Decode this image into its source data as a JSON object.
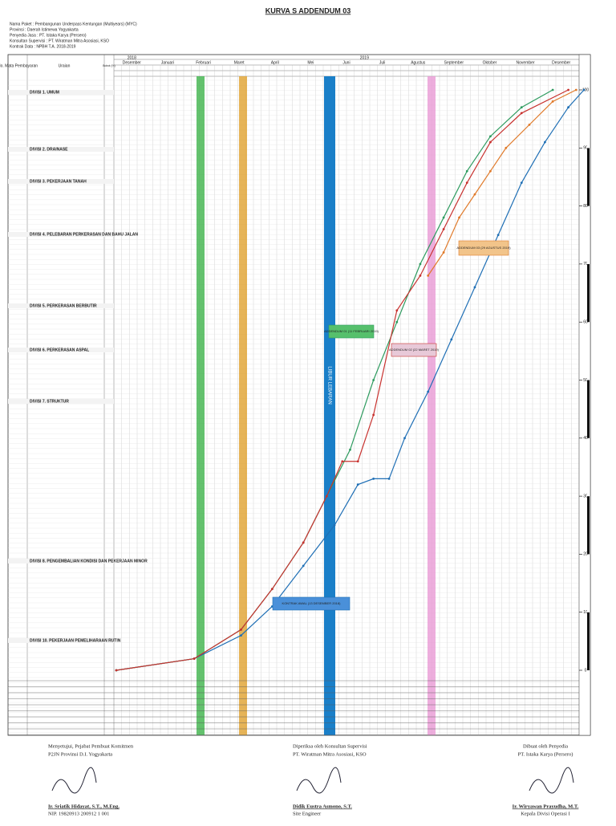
{
  "header": {
    "title": "KURVA S ADDENDUM 03",
    "info": [
      "Nama Paket : Pembangunan Underpass Kentungan (Multiyears) (MYC)",
      "Provinsi : Daerah Istimewa Yogyakarta",
      "Penyedia Jasa : PT. Istaka Karya (Persero)",
      "Konsultan Supervisi : PT. Wiratman Mitra Asosiasi, KSO",
      "Kontrak Data : NPBH T.A. 2018-2019"
    ],
    "col_no": "No. Mata Pembayaran",
    "col_uraian": "Uraian",
    "col_bobot": "Bobot (%)",
    "years": [
      "2018",
      "2019"
    ],
    "months": [
      "Desember",
      "Januari",
      "Februari",
      "Maret",
      "April",
      "Mei",
      "Juni",
      "Juli",
      "Agustus",
      "September",
      "Oktober",
      "November",
      "Desember"
    ]
  },
  "divisions": [
    "DIVISI 1. UMUM",
    "DIVISI 2. DRAINASE",
    "DIVISI 3. PEKERJAAN TANAH",
    "DIVISI 4. PELEBARAN PERKERASAN DAN BAHU JALAN",
    "DIVISI 5. PERKERASAN BERBUTIR",
    "DIVISI 6. PERKERASAN ASPAL",
    "DIVISI 7. STRUKTUR",
    "DIVISI 8. PENGEMBALIAN KONDISI DAN PEKERJAAN MINOR",
    "DIVISI 10. PEKERJAAN PEMELIHARAAN RUTIN"
  ],
  "holiday": "LIBUR LEBARAN",
  "chart_data": {
    "type": "line",
    "ylim": [
      0,
      100
    ],
    "yticks": [
      0,
      10,
      20,
      30,
      40,
      50,
      60,
      70,
      80,
      90,
      100
    ],
    "xlim": [
      0,
      60
    ],
    "series": [
      {
        "name": "KONTRAK AWAL (13 DESEMBER 2018)",
        "color": "#1f6fb5",
        "x": [
          0,
          10,
          16,
          20,
          24,
          28,
          31,
          33,
          35,
          37,
          40,
          43,
          46,
          49,
          52,
          55,
          58,
          60
        ],
        "values": [
          0,
          2,
          6,
          11,
          18,
          25,
          32,
          33,
          33,
          40,
          48,
          57,
          66,
          75,
          84,
          91,
          97,
          100
        ]
      },
      {
        "name": "ADDENDUM 01 (11 FEBRUARI 2019)",
        "color": "#2e9b5f",
        "x": [
          0,
          10,
          16,
          20,
          24,
          27,
          30,
          33,
          36,
          39,
          42,
          45,
          48,
          52,
          56
        ],
        "values": [
          0,
          2,
          7,
          14,
          22,
          30,
          38,
          50,
          60,
          70,
          78,
          86,
          92,
          97,
          100
        ]
      },
      {
        "name": "ADDENDUM 02 (22 MARET 2019)",
        "color": "#c8322f",
        "x": [
          0,
          10,
          16,
          20,
          24,
          27,
          29,
          31,
          33,
          36,
          39,
          42,
          45,
          48,
          52,
          58
        ],
        "values": [
          0,
          2,
          7,
          14,
          22,
          30,
          36,
          36,
          44,
          62,
          68,
          76,
          84,
          91,
          96,
          100
        ]
      },
      {
        "name": "ADDENDUM 03 (29 AGUSTUS 2019)",
        "color": "#e07a2a",
        "x": [
          40,
          42,
          44,
          46,
          48,
          50,
          53,
          56,
          59
        ],
        "values": [
          68,
          72,
          78,
          82,
          86,
          90,
          94,
          98,
          100
        ]
      }
    ]
  },
  "signatures": [
    {
      "role": "Menyetujui, Pejabat Pembuat Komitmen",
      "org": "P2JN Provinsi D.I. Yogyakarta",
      "name": "Ir. Sriatik Hidayat, S.T., M.Eng.",
      "id": "NIP. 19820913 200912 1 001"
    },
    {
      "role": "Diperiksa oleh Konsultan Supervisi",
      "org": "PT. Wiratman Mitra Asosiasi, KSO",
      "name": "Didik Eustra Asmono, S.T.",
      "id": "Site Engineer"
    },
    {
      "role": "Dibuat oleh Penyedia",
      "org": "PT. Istaka Karya (Persero)",
      "name": "Ir. Wiryawan Prayudha, M.T.",
      "id": "Kepala Divisi Operasi I"
    }
  ]
}
